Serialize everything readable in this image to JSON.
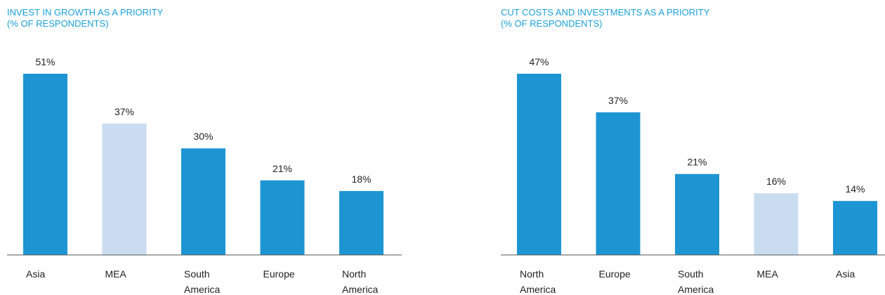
{
  "colors": {
    "primary_bar": "#1e95d3",
    "highlight_bar": "#c9dcf0",
    "title": "#1ba0d8",
    "axis": "#555555"
  },
  "chart_data": [
    {
      "type": "bar",
      "title": "INVEST IN GROWTH AS A PRIORITY",
      "subtitle": "(% OF RESPONDENTS)",
      "categories": [
        "Asia",
        "MEA",
        "South America",
        "Europe",
        "North America"
      ],
      "category_lines": [
        [
          "Asia"
        ],
        [
          "MEA"
        ],
        [
          "South",
          "America"
        ],
        [
          "Europe"
        ],
        [
          "North",
          "America"
        ]
      ],
      "values": [
        51,
        37,
        30,
        21,
        18
      ],
      "value_labels": [
        "51%",
        "37%",
        "30%",
        "21%",
        "18%"
      ],
      "highlight": [
        false,
        true,
        false,
        false,
        false
      ],
      "ylim": [
        0,
        51
      ],
      "xlabel": "",
      "ylabel": "",
      "grid": false
    },
    {
      "type": "bar",
      "title": "CUT COSTS AND INVESTMENTS AS A PRIORITY",
      "subtitle": "(% OF RESPONDENTS)",
      "categories": [
        "North America",
        "Europe",
        "South America",
        "MEA",
        "Asia"
      ],
      "category_lines": [
        [
          "North",
          "America"
        ],
        [
          "Europe"
        ],
        [
          "South",
          "America"
        ],
        [
          "MEA"
        ],
        [
          "Asia"
        ]
      ],
      "values": [
        47,
        37,
        21,
        16,
        14
      ],
      "value_labels": [
        "47%",
        "37%",
        "21%",
        "16%",
        "14%"
      ],
      "highlight": [
        false,
        false,
        false,
        true,
        false
      ],
      "ylim": [
        0,
        47
      ],
      "xlabel": "",
      "ylabel": "",
      "grid": false
    }
  ]
}
